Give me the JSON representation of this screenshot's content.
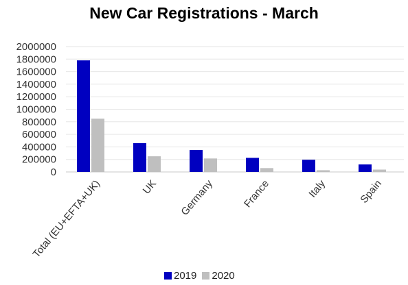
{
  "chart_data": {
    "type": "bar",
    "title": "New Car Registrations - March",
    "categories": [
      "Total (EU+EFTA+UK)",
      "UK",
      "Germany",
      "France",
      "Italy",
      "Spain"
    ],
    "series": [
      {
        "name": "2019",
        "color": "#0000c0",
        "values": [
          1780000,
          460000,
          350000,
          225000,
          195000,
          120000
        ]
      },
      {
        "name": "2020",
        "color": "#bfbfbf",
        "values": [
          850000,
          250000,
          215000,
          62000,
          28000,
          38000
        ]
      }
    ],
    "yticks": [
      "0",
      "200000",
      "400000",
      "600000",
      "800000",
      "1000000",
      "1200000",
      "1400000",
      "1600000",
      "1800000",
      "2000000"
    ],
    "ylim": [
      0,
      2000000
    ],
    "grid": true,
    "legend_position": "bottom"
  }
}
